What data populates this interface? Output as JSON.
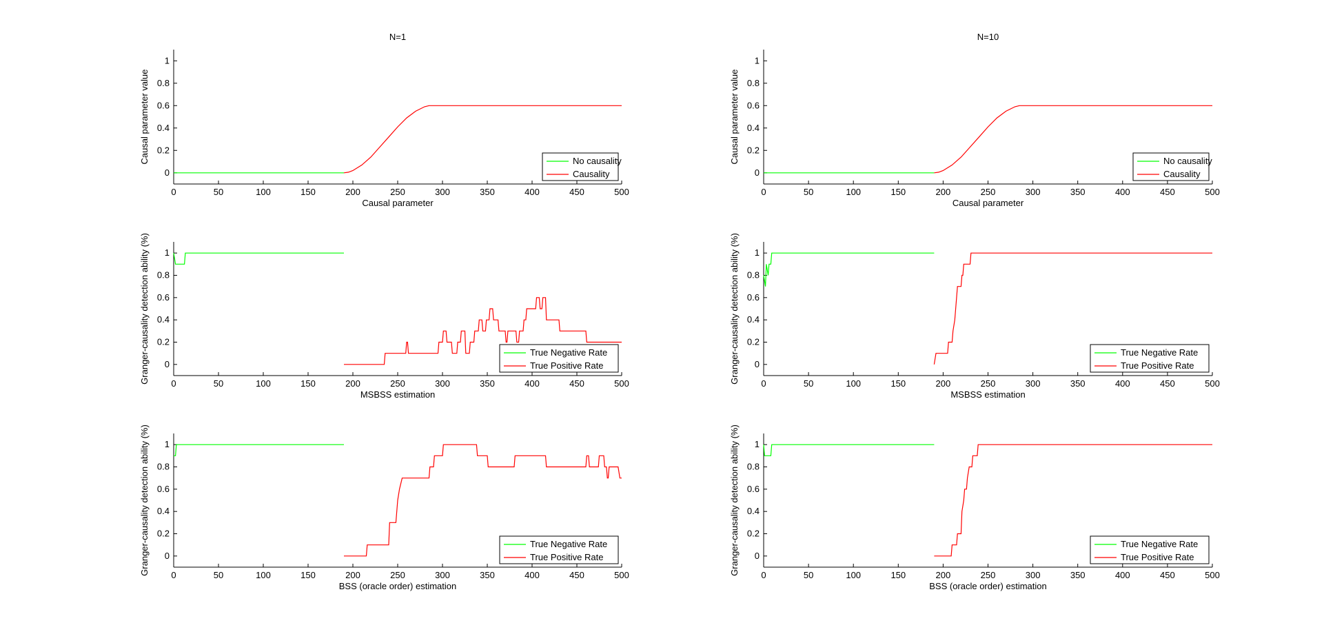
{
  "colors": {
    "negative": "#00ff00",
    "positive": "#ff0000",
    "axis": "#000000"
  },
  "chart_data": [
    {
      "type": "line",
      "title": "N=1",
      "xlabel": "Causal parameter",
      "ylabel": "Causal parameter value",
      "xlim": [
        0,
        500
      ],
      "ylim": [
        -0.1,
        1.1
      ],
      "xticks": [
        0,
        50,
        100,
        150,
        200,
        250,
        300,
        350,
        400,
        450,
        500
      ],
      "yticks": [
        0,
        0.2,
        0.4,
        0.6,
        0.8,
        1
      ],
      "ytick_labels": [
        "0",
        "0.2",
        "0.4",
        "0.6",
        "0.8",
        "1"
      ],
      "legend": "bottom-right",
      "series": [
        {
          "name": "No causality",
          "color": "#00ff00",
          "x": [
            0,
            190
          ],
          "y": [
            0,
            0
          ]
        },
        {
          "name": "Causality",
          "color": "#ff0000",
          "x": [
            190,
            195,
            200,
            210,
            220,
            230,
            240,
            250,
            260,
            270,
            280,
            285,
            290,
            500
          ],
          "y": [
            0,
            0.005,
            0.02,
            0.07,
            0.14,
            0.23,
            0.32,
            0.41,
            0.49,
            0.55,
            0.59,
            0.6,
            0.6,
            0.6
          ]
        }
      ]
    },
    {
      "type": "line",
      "title": "N=10",
      "xlabel": "Causal parameter",
      "ylabel": "Causal parameter value",
      "xlim": [
        0,
        500
      ],
      "ylim": [
        -0.1,
        1.1
      ],
      "xticks": [
        0,
        50,
        100,
        150,
        200,
        250,
        300,
        350,
        400,
        450,
        500
      ],
      "yticks": [
        0,
        0.2,
        0.4,
        0.6,
        0.8,
        1
      ],
      "ytick_labels": [
        "0",
        "0.2",
        "0.4",
        "0.6",
        "0.8",
        "1"
      ],
      "legend": "bottom-right",
      "series": [
        {
          "name": "No causality",
          "color": "#00ff00",
          "x": [
            0,
            190
          ],
          "y": [
            0,
            0
          ]
        },
        {
          "name": "Causality",
          "color": "#ff0000",
          "x": [
            190,
            195,
            200,
            210,
            220,
            230,
            240,
            250,
            260,
            270,
            280,
            285,
            290,
            500
          ],
          "y": [
            0,
            0.005,
            0.02,
            0.07,
            0.14,
            0.23,
            0.32,
            0.41,
            0.49,
            0.55,
            0.59,
            0.6,
            0.6,
            0.6
          ]
        }
      ]
    },
    {
      "type": "line",
      "title": "",
      "xlabel": "MSBSS estimation",
      "ylabel": "Granger-causality detection ability (%)",
      "xlim": [
        0,
        500
      ],
      "ylim": [
        -0.1,
        1.1
      ],
      "xticks": [
        0,
        50,
        100,
        150,
        200,
        250,
        300,
        350,
        400,
        450,
        500
      ],
      "yticks": [
        0,
        0.2,
        0.4,
        0.6,
        0.8,
        1
      ],
      "ytick_labels": [
        "0",
        "0.2",
        "0.4",
        "0.6",
        "0.8",
        "1"
      ],
      "legend": "bottom-right",
      "series": [
        {
          "name": "True Negative Rate",
          "color": "#00ff00",
          "x": [
            0,
            2,
            4,
            12,
            13,
            190
          ],
          "y": [
            1,
            0.9,
            0.9,
            0.9,
            1,
            1
          ]
        },
        {
          "name": "True Positive Rate",
          "color": "#ff0000",
          "x": [
            190,
            235,
            236,
            259,
            260,
            261,
            262,
            295,
            296,
            300,
            301,
            304,
            305,
            310,
            311,
            316,
            317,
            320,
            321,
            325,
            326,
            330,
            331,
            335,
            336,
            340,
            341,
            344,
            345,
            348,
            349,
            352,
            353,
            356,
            357,
            362,
            363,
            370,
            371,
            372,
            373,
            382,
            383,
            385,
            386,
            390,
            391,
            393,
            394,
            404,
            405,
            408,
            409,
            411,
            412,
            415,
            416,
            430,
            431,
            460,
            461,
            500
          ],
          "y": [
            0,
            0,
            0.1,
            0.1,
            0.2,
            0.2,
            0.1,
            0.1,
            0.2,
            0.2,
            0.3,
            0.3,
            0.2,
            0.2,
            0.1,
            0.1,
            0.2,
            0.2,
            0.3,
            0.3,
            0.1,
            0.1,
            0.2,
            0.2,
            0.3,
            0.3,
            0.4,
            0.4,
            0.3,
            0.3,
            0.4,
            0.4,
            0.5,
            0.5,
            0.4,
            0.4,
            0.3,
            0.3,
            0.2,
            0.2,
            0.3,
            0.3,
            0.2,
            0.2,
            0.3,
            0.3,
            0.4,
            0.4,
            0.5,
            0.5,
            0.6,
            0.6,
            0.5,
            0.5,
            0.6,
            0.6,
            0.4,
            0.4,
            0.3,
            0.3,
            0.2,
            0.2
          ]
        }
      ]
    },
    {
      "type": "line",
      "title": "",
      "xlabel": "MSBSS estimation",
      "ylabel": "Granger-causality detection ability (%)",
      "xlim": [
        0,
        500
      ],
      "ylim": [
        -0.1,
        1.1
      ],
      "xticks": [
        0,
        50,
        100,
        150,
        200,
        250,
        300,
        350,
        400,
        450,
        500
      ],
      "yticks": [
        0,
        0.2,
        0.4,
        0.6,
        0.8,
        1
      ],
      "ytick_labels": [
        "0",
        "0.2",
        "0.4",
        "0.6",
        "0.8",
        "1"
      ],
      "legend": "bottom-right",
      "series": [
        {
          "name": "True Negative Rate",
          "color": "#00ff00",
          "x": [
            0,
            2,
            3,
            5,
            6,
            8,
            9,
            12,
            190
          ],
          "y": [
            0.8,
            0.7,
            0.9,
            0.8,
            0.9,
            0.9,
            1,
            1,
            1
          ]
        },
        {
          "name": "True Positive Rate",
          "color": "#ff0000",
          "x": [
            190,
            192,
            193,
            200,
            201,
            205,
            206,
            210,
            211,
            213,
            214,
            215,
            216,
            220,
            221,
            222,
            223,
            225,
            226,
            230,
            231,
            232,
            233,
            500
          ],
          "y": [
            0,
            0.1,
            0.1,
            0.1,
            0.1,
            0.1,
            0.2,
            0.2,
            0.3,
            0.4,
            0.5,
            0.6,
            0.7,
            0.7,
            0.8,
            0.8,
            0.9,
            0.9,
            0.9,
            0.9,
            1,
            1,
            1,
            1
          ]
        }
      ]
    },
    {
      "type": "line",
      "title": "",
      "xlabel": "BSS (oracle order) estimation",
      "ylabel": "Granger-causality detection ability (%)",
      "xlim": [
        0,
        500
      ],
      "ylim": [
        -0.1,
        1.1
      ],
      "xticks": [
        0,
        50,
        100,
        150,
        200,
        250,
        300,
        350,
        400,
        450,
        500
      ],
      "yticks": [
        0,
        0.2,
        0.4,
        0.6,
        0.8,
        1
      ],
      "ytick_labels": [
        "0",
        "0.2",
        "0.4",
        "0.6",
        "0.8",
        "1"
      ],
      "legend": "bottom-right",
      "series": [
        {
          "name": "True Negative Rate",
          "color": "#00ff00",
          "x": [
            0,
            2,
            3,
            5,
            190
          ],
          "y": [
            0.9,
            0.9,
            1,
            1,
            1
          ]
        },
        {
          "name": "True Positive Rate",
          "color": "#ff0000",
          "x": [
            190,
            215,
            216,
            240,
            241,
            248,
            250,
            252,
            255,
            285,
            286,
            290,
            291,
            295,
            296,
            300,
            301,
            305,
            306,
            338,
            339,
            350,
            351,
            380,
            381,
            415,
            416,
            460,
            461,
            463,
            464,
            474,
            475,
            480,
            481,
            483,
            484,
            485,
            486,
            495,
            496,
            498,
            500
          ],
          "y": [
            0,
            0,
            0.1,
            0.1,
            0.3,
            0.3,
            0.5,
            0.6,
            0.7,
            0.7,
            0.8,
            0.8,
            0.9,
            0.9,
            0.9,
            0.9,
            1,
            1,
            1,
            1,
            0.9,
            0.9,
            0.8,
            0.8,
            0.9,
            0.9,
            0.8,
            0.8,
            0.9,
            0.9,
            0.8,
            0.8,
            0.9,
            0.9,
            0.8,
            0.8,
            0.7,
            0.7,
            0.8,
            0.8,
            0.8,
            0.7,
            0.7
          ]
        }
      ]
    },
    {
      "type": "line",
      "title": "",
      "xlabel": "BSS (oracle order) estimation",
      "ylabel": "Granger-causality detection ability (%)",
      "xlim": [
        0,
        500
      ],
      "ylim": [
        -0.1,
        1.1
      ],
      "xticks": [
        0,
        50,
        100,
        150,
        200,
        250,
        300,
        350,
        400,
        450,
        500
      ],
      "yticks": [
        0,
        0.2,
        0.4,
        0.6,
        0.8,
        1
      ],
      "ytick_labels": [
        "0",
        "0.2",
        "0.4",
        "0.6",
        "0.8",
        "1"
      ],
      "legend": "bottom-right",
      "series": [
        {
          "name": "True Negative Rate",
          "color": "#00ff00",
          "x": [
            0,
            1,
            2,
            8,
            9,
            190
          ],
          "y": [
            1,
            0.9,
            0.9,
            0.9,
            1,
            1
          ]
        },
        {
          "name": "True Positive Rate",
          "color": "#ff0000",
          "x": [
            190,
            209,
            210,
            215,
            216,
            220,
            221,
            223,
            224,
            226,
            227,
            229,
            230,
            232,
            233,
            235,
            236,
            238,
            239,
            241,
            242,
            500
          ],
          "y": [
            0,
            0,
            0.1,
            0.1,
            0.2,
            0.2,
            0.4,
            0.5,
            0.6,
            0.6,
            0.7,
            0.8,
            0.8,
            0.8,
            0.9,
            0.9,
            0.9,
            0.9,
            1,
            1,
            1,
            1
          ]
        }
      ]
    }
  ]
}
